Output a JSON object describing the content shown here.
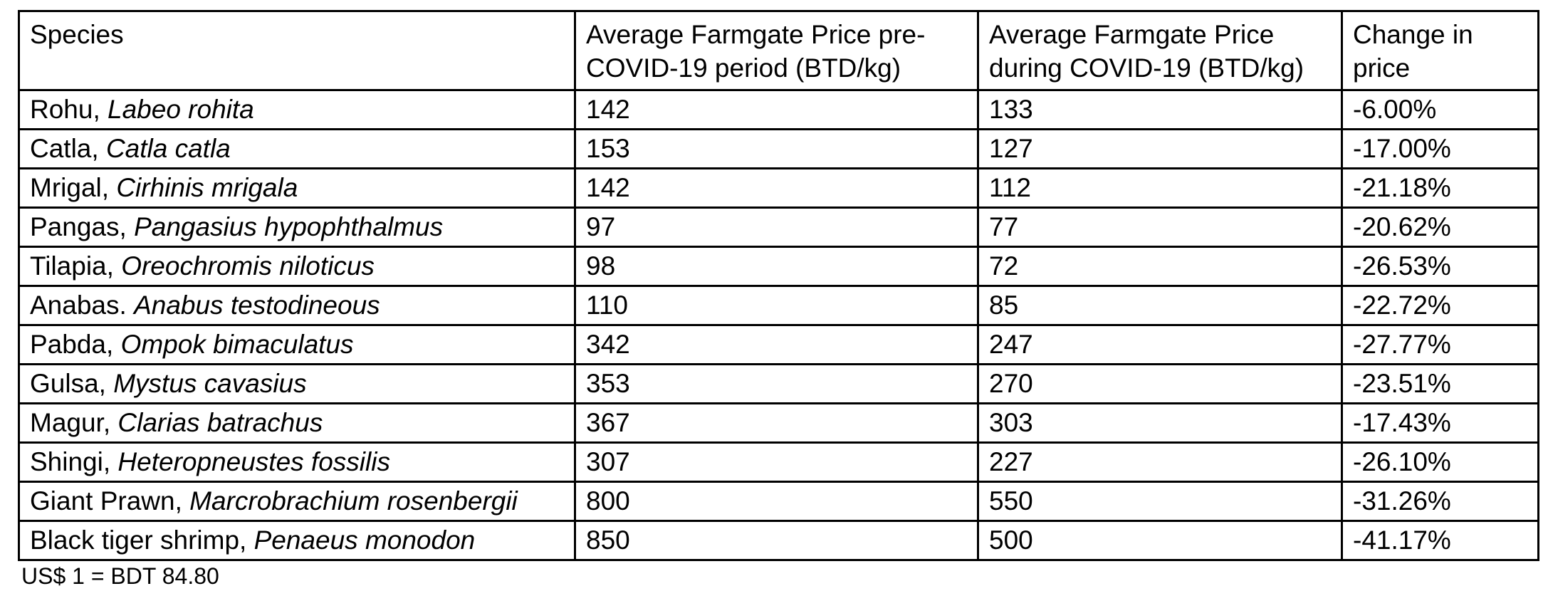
{
  "table": {
    "columns": [
      {
        "lines": [
          "Species"
        ]
      },
      {
        "lines": [
          "Average Farmgate Price pre-",
          "COVID-19 period (BTD/kg)"
        ]
      },
      {
        "lines": [
          "Average Farmgate Price",
          "during COVID-19 (BTD/kg)"
        ]
      },
      {
        "lines": [
          "Change in",
          "price"
        ]
      }
    ],
    "rows": [
      {
        "common_name": "Rohu,",
        "scientific_name": "Labeo rohita",
        "pre_covid_price": "142",
        "during_covid_price": "133",
        "change_in_price": "-6.00%"
      },
      {
        "common_name": "Catla,",
        "scientific_name": "Catla catla",
        "pre_covid_price": "153",
        "during_covid_price": "127",
        "change_in_price": "-17.00%"
      },
      {
        "common_name": "Mrigal,",
        "scientific_name": "Cirhinis mrigala",
        "pre_covid_price": "142",
        "during_covid_price": "112",
        "change_in_price": "-21.18%"
      },
      {
        "common_name": "Pangas,",
        "scientific_name": "Pangasius hypophthalmus",
        "pre_covid_price": "97",
        "during_covid_price": "77",
        "change_in_price": "-20.62%"
      },
      {
        "common_name": "Tilapia,",
        "scientific_name": "Oreochromis niloticus",
        "pre_covid_price": "98",
        "during_covid_price": "72",
        "change_in_price": "-26.53%"
      },
      {
        "common_name": "Anabas.",
        "scientific_name": "Anabus testodineous",
        "pre_covid_price": "110",
        "during_covid_price": "85",
        "change_in_price": "-22.72%"
      },
      {
        "common_name": "Pabda,",
        "scientific_name": "Ompok bimaculatus",
        "pre_covid_price": "342",
        "during_covid_price": "247",
        "change_in_price": "-27.77%"
      },
      {
        "common_name": "Gulsa,",
        "scientific_name": "Mystus cavasius",
        "pre_covid_price": "353",
        "during_covid_price": "270",
        "change_in_price": "-23.51%"
      },
      {
        "common_name": "Magur,",
        "scientific_name": "Clarias batrachus",
        "pre_covid_price": "367",
        "during_covid_price": "303",
        "change_in_price": "-17.43%"
      },
      {
        "common_name": "Shingi,",
        "scientific_name": "Heteropneustes fossilis",
        "pre_covid_price": "307",
        "during_covid_price": "227",
        "change_in_price": "-26.10%"
      },
      {
        "common_name": "Giant Prawn,",
        "scientific_name": "Marcrobrachium rosenbergii",
        "pre_covid_price": "800",
        "during_covid_price": "550",
        "change_in_price": "-31.26%"
      },
      {
        "common_name": "Black tiger shrimp,",
        "scientific_name": "Penaeus monodon",
        "pre_covid_price": "850",
        "during_covid_price": "500",
        "change_in_price": "-41.17%"
      }
    ],
    "footnote": "US$ 1 = BDT 84.80"
  },
  "colors": {
    "text": "#000000",
    "border": "#000000",
    "background": "#ffffff"
  }
}
